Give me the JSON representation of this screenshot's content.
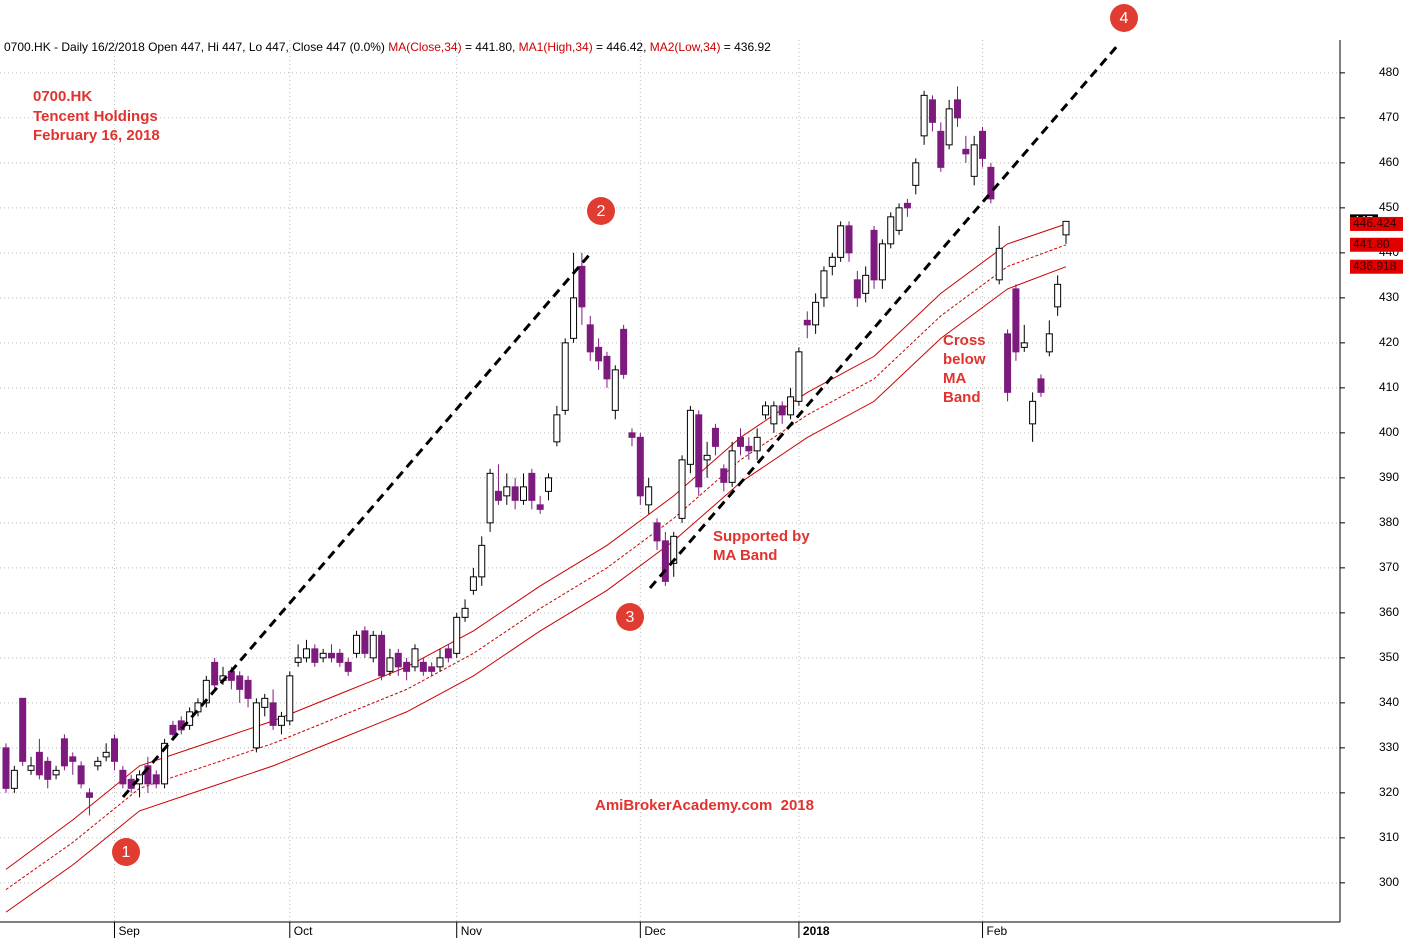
{
  "chart_data": {
    "type": "candlestick",
    "header": "0700.HK - Daily 16/2/2018 Open 447, Hi 447, Lo 447, Close 447 (0.0%) ",
    "annotations": {
      "ticker": "0700.HK",
      "company": "Tencent Holdings",
      "date": "February 16, 2018",
      "support1": "Supported by",
      "support2": "MA Band",
      "cross1": "Cross",
      "cross2": "below",
      "cross3": "MA",
      "cross4": "Band",
      "watermark": "AmiBrokerAcademy.com  2018",
      "marker1": "1",
      "marker2": "2",
      "marker3": "3",
      "marker4": "4"
    },
    "categories": [
      null,
      null,
      null,
      null,
      null,
      null,
      null,
      null,
      null,
      null,
      null,
      null,
      null,
      "Sep",
      null,
      null,
      null,
      null,
      null,
      null,
      null,
      null,
      null,
      null,
      null,
      null,
      null,
      null,
      null,
      null,
      null,
      null,
      null,
      null,
      "Oct",
      null,
      null,
      null,
      null,
      null,
      null,
      null,
      null,
      null,
      null,
      null,
      null,
      null,
      null,
      null,
      null,
      null,
      null,
      null,
      "Nov",
      null,
      null,
      null,
      null,
      null,
      null,
      null,
      null,
      null,
      null,
      null,
      null,
      null,
      null,
      null,
      null,
      null,
      null,
      null,
      null,
      null,
      "Dec",
      null,
      null,
      null,
      null,
      null,
      null,
      null,
      null,
      null,
      null,
      null,
      null,
      null,
      null,
      null,
      null,
      null,
      null,
      "2018",
      null,
      null,
      null,
      null,
      null,
      null,
      null,
      null,
      null,
      null,
      null,
      null,
      null,
      null,
      null,
      null,
      null,
      null,
      null,
      null,
      null,
      "Feb",
      null,
      null,
      null,
      null,
      null,
      null,
      null,
      null,
      null,
      null
    ],
    "open": [
      330,
      321,
      341,
      325,
      329,
      327,
      324,
      332,
      328,
      326,
      320,
      326,
      328,
      332,
      325,
      323,
      322,
      326,
      324,
      322,
      335,
      336,
      335,
      338,
      340,
      349,
      345,
      347,
      346,
      345,
      330,
      339,
      340,
      335,
      336,
      349,
      350,
      352,
      350,
      351,
      351,
      349,
      351,
      356,
      350,
      355,
      347,
      351,
      349,
      348,
      349,
      348,
      348,
      352,
      351,
      359,
      365,
      368,
      380,
      387,
      386,
      388,
      385,
      391,
      384,
      387,
      398,
      405,
      421,
      437,
      424,
      419,
      417,
      405,
      423,
      400,
      399,
      384,
      380,
      376,
      371,
      381,
      393,
      404,
      394,
      401,
      392,
      389,
      399,
      397,
      396,
      404,
      402,
      406,
      404,
      407,
      425,
      424,
      430,
      437,
      439,
      446,
      434,
      431,
      445,
      434,
      442,
      445,
      451,
      455,
      466,
      474,
      467,
      464,
      474,
      463,
      457,
      467,
      459,
      434,
      422,
      432,
      419,
      402,
      412,
      418,
      428,
      444
    ],
    "high": [
      331,
      326,
      341,
      328,
      332,
      328,
      326,
      333,
      329,
      327,
      321,
      328,
      331,
      333,
      326,
      324,
      325,
      328,
      325,
      332,
      336,
      337,
      339,
      341,
      346,
      350,
      348,
      348,
      347,
      346,
      341,
      342,
      343,
      338,
      347,
      353,
      354,
      353,
      352,
      353,
      352,
      350,
      356,
      357,
      356,
      356,
      352,
      352,
      350,
      353,
      350,
      349,
      352,
      353,
      360,
      363,
      370,
      377,
      392,
      393,
      391,
      390,
      391,
      392,
      386,
      391,
      406,
      421,
      440,
      440,
      426,
      421,
      418,
      415,
      424,
      401,
      400,
      390,
      381,
      378,
      378,
      395,
      406,
      405,
      398,
      402,
      393,
      398,
      401,
      399,
      401,
      407,
      407,
      407,
      410,
      419,
      427,
      431,
      437,
      440,
      447,
      447,
      436,
      437,
      446,
      443,
      449,
      451,
      452,
      461,
      476,
      475,
      469,
      474,
      477,
      466,
      466,
      468,
      460,
      446,
      423,
      433,
      424,
      409,
      413,
      425,
      435,
      447
    ],
    "low": [
      320,
      320,
      326,
      324,
      323,
      321,
      323,
      325,
      324,
      321,
      315,
      325,
      327,
      325,
      321,
      320,
      319,
      320,
      321,
      321,
      332,
      333,
      334,
      337,
      339,
      343,
      344,
      343,
      340,
      339,
      329,
      337,
      334,
      333,
      335,
      348,
      349,
      348,
      349,
      349,
      348,
      346,
      350,
      350,
      349,
      345,
      346,
      346,
      345,
      347,
      346,
      346,
      347,
      349,
      350,
      358,
      364,
      366,
      378,
      384,
      384,
      383,
      384,
      383,
      382,
      385,
      397,
      404,
      420,
      424,
      416,
      414,
      410,
      403,
      412,
      397,
      384,
      382,
      374,
      366,
      368,
      380,
      391,
      386,
      390,
      395,
      387,
      388,
      395,
      394,
      394,
      403,
      400,
      402,
      403,
      406,
      421,
      422,
      428,
      435,
      438,
      438,
      428,
      429,
      432,
      432,
      441,
      444,
      448,
      453,
      464,
      467,
      458,
      463,
      468,
      460,
      455,
      459,
      451,
      433,
      407,
      416,
      418,
      398,
      408,
      417,
      426,
      442
    ],
    "close": [
      321,
      325,
      327,
      326,
      324,
      323,
      325,
      326,
      327,
      322,
      319,
      327,
      329,
      327,
      322,
      321,
      324,
      322,
      322,
      331,
      333,
      334,
      338,
      340,
      345,
      344,
      346,
      345,
      343,
      341,
      340,
      341,
      335,
      337,
      346,
      350,
      352,
      349,
      351,
      350,
      349,
      347,
      355,
      351,
      355,
      346,
      350,
      348,
      347,
      352,
      347,
      347,
      350,
      350,
      359,
      361,
      368,
      375,
      391,
      385,
      388,
      385,
      388,
      385,
      383,
      390,
      404,
      420,
      430,
      428,
      418,
      416,
      412,
      414,
      413,
      399,
      386,
      388,
      376,
      367,
      377,
      394,
      405,
      388,
      395,
      397,
      389,
      396,
      397,
      396,
      399,
      406,
      406,
      404,
      408,
      418,
      424,
      429,
      436,
      439,
      446,
      440,
      430,
      435,
      434,
      442,
      448,
      450,
      450,
      460,
      475,
      469,
      459,
      472,
      470,
      462,
      464,
      461,
      452,
      441,
      409,
      418,
      420,
      407,
      409,
      422,
      433,
      447
    ],
    "up_color": "#ffffff",
    "down_color": "#7d1a7d",
    "ma": [
      {
        "name": "MA(Close,34)",
        "legend_text": " = 441.80, ",
        "color": "#cc0000",
        "dashed": true,
        "x": [
          0,
          8,
          16,
          24,
          32,
          40,
          48,
          56,
          64,
          72,
          80,
          88,
          96,
          104,
          112,
          120,
          127
        ],
        "values": [
          298.5,
          309,
          321,
          326,
          331,
          337,
          343,
          351,
          361,
          370,
          381,
          394,
          404,
          412,
          426,
          437,
          441.8
        ]
      },
      {
        "name": "MA1(High,34)",
        "legend_text": " = 446.42, ",
        "color": "#cc0000",
        "dashed": false,
        "x": [
          0,
          8,
          16,
          24,
          32,
          40,
          48,
          56,
          64,
          72,
          80,
          88,
          96,
          104,
          112,
          120,
          127
        ],
        "values": [
          303,
          314,
          326,
          331,
          336,
          342,
          348,
          356,
          366,
          375,
          386,
          399,
          409,
          417,
          431,
          442,
          446.42
        ]
      },
      {
        "name": "MA2(Low,34)",
        "legend_text": " = 436.92",
        "color": "#cc0000",
        "dashed": false,
        "x": [
          0,
          8,
          16,
          24,
          32,
          40,
          48,
          56,
          64,
          72,
          80,
          88,
          96,
          104,
          112,
          120,
          127
        ],
        "values": [
          293.5,
          304,
          316,
          321,
          326,
          332,
          338,
          346,
          356,
          365,
          376,
          389,
          399,
          407,
          421,
          432,
          436.92
        ]
      }
    ],
    "end_labels": [
      447,
      446.424,
      {
        "value": 441.8,
        "label": "441.80"
      },
      436.918
    ],
    "ylim": [
      291.3,
      487.3
    ],
    "yticks": [
      300,
      310,
      320,
      330,
      340,
      350,
      360,
      370,
      380,
      390,
      400,
      410,
      420,
      430,
      440,
      450,
      460,
      470,
      480
    ],
    "grid": true
  }
}
